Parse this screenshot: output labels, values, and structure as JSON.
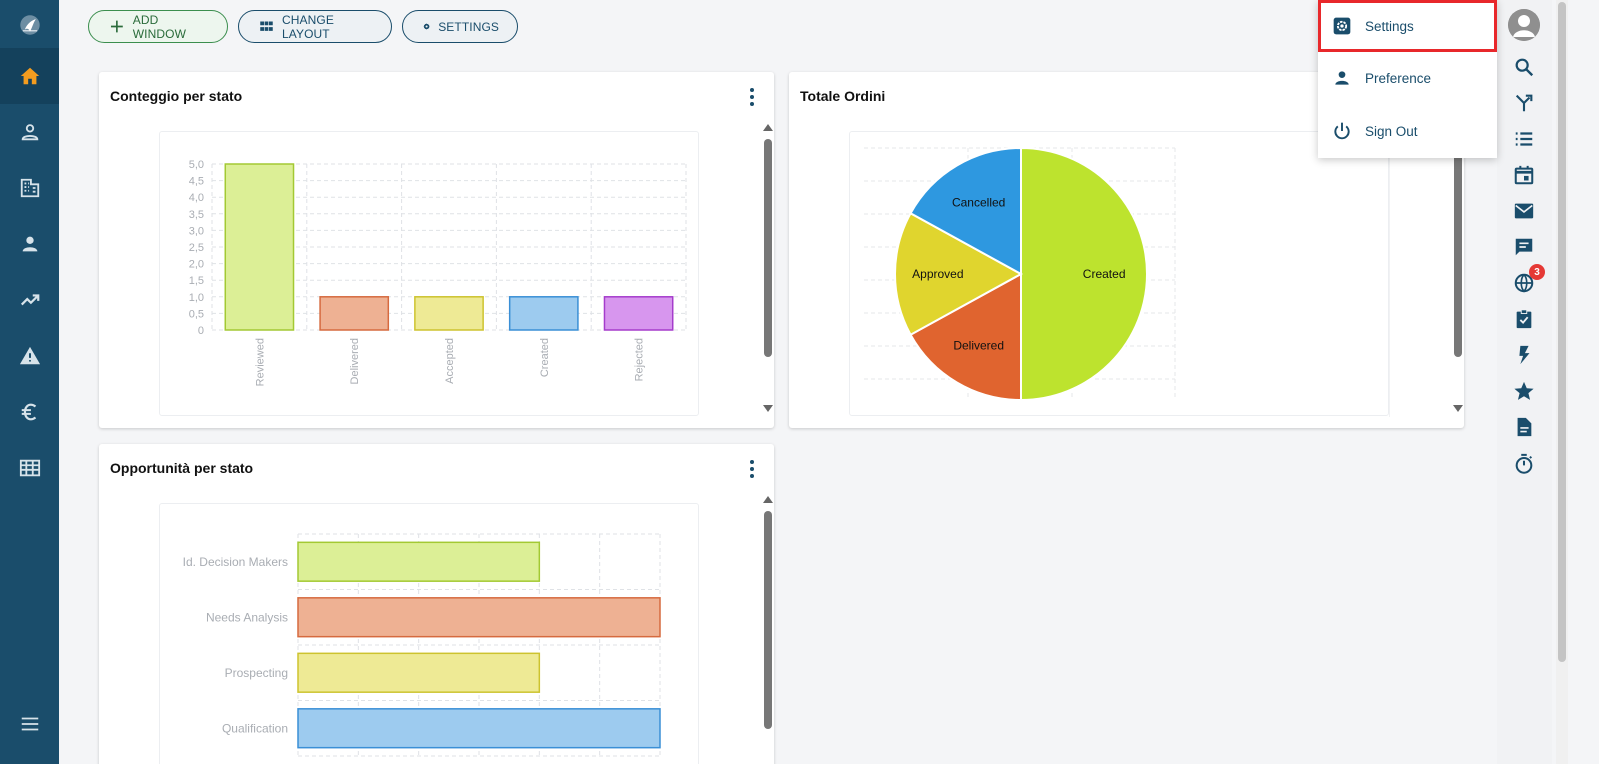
{
  "sidebar": {
    "logo_icon": "app-logo-icon",
    "items": [
      {
        "name": "home",
        "icon": "home-icon",
        "active": true
      },
      {
        "name": "contacts",
        "icon": "person-outline-icon"
      },
      {
        "name": "companies",
        "icon": "building-icon"
      },
      {
        "name": "users",
        "icon": "person-icon"
      },
      {
        "name": "trends",
        "icon": "trending-up-icon"
      },
      {
        "name": "alerts",
        "icon": "warning-icon"
      },
      {
        "name": "finance",
        "icon": "euro-icon"
      },
      {
        "name": "tables",
        "icon": "table-icon"
      }
    ],
    "menu_icon": "hamburger-menu-icon"
  },
  "toolbar": {
    "add_window": "ADD WINDOW",
    "change_layout": "CHANGE LAYOUT",
    "settings": "SETTINGS"
  },
  "widgets": {
    "status_count": {
      "title": "Conteggio per stato",
      "y_ticks": [
        "0",
        "0,5",
        "1,0",
        "1,5",
        "2,0",
        "2,5",
        "3,0",
        "3,5",
        "4,0",
        "4,5",
        "5,0"
      ]
    },
    "total_orders": {
      "title": "Totale Ordini"
    },
    "opportunities": {
      "title": "Opportunità per stato"
    }
  },
  "chart_data": [
    {
      "type": "bar",
      "categories": [
        "Reviewed",
        "Delivered",
        "Accepted",
        "Created",
        "Rejected"
      ],
      "values": [
        5,
        1,
        1,
        1,
        1
      ],
      "ylim": [
        0,
        5
      ],
      "colors": [
        "#dcef96",
        "#eeb193",
        "#eeea95",
        "#9dcbef",
        "#d796ee"
      ],
      "border_colors": [
        "#a3c933",
        "#d66a3f",
        "#cdc32f",
        "#3a8fd6",
        "#a53ccc"
      ],
      "grid": true
    },
    {
      "type": "pie",
      "labels": [
        "Created",
        "Delivered",
        "Approved",
        "Cancelled"
      ],
      "values": [
        50,
        17,
        16,
        17
      ],
      "colors": [
        "#bde32e",
        "#e0642f",
        "#e0d52e",
        "#2e98e0"
      ]
    },
    {
      "type": "bar",
      "orientation": "horizontal",
      "categories": [
        "Id. Decision Makers",
        "Needs Analysis",
        "Prospecting",
        "Qualification"
      ],
      "values": [
        2,
        3,
        2,
        3
      ],
      "xlim": [
        0,
        3
      ],
      "colors": [
        "#dcef96",
        "#eeb193",
        "#eeea95",
        "#9dcbef"
      ],
      "border_colors": [
        "#a3c933",
        "#d66a3f",
        "#cdc32f",
        "#3a8fd6"
      ],
      "grid": true
    }
  ],
  "user_menu": {
    "items": [
      {
        "label": "Settings",
        "icon": "settings-icon",
        "highlighted": true
      },
      {
        "label": "Preference",
        "icon": "person-icon"
      },
      {
        "label": "Sign Out",
        "icon": "power-icon"
      }
    ]
  },
  "right_rail": {
    "items": [
      {
        "icon": "search-icon"
      },
      {
        "icon": "merge-icon"
      },
      {
        "icon": "list-icon"
      },
      {
        "icon": "calendar-icon"
      },
      {
        "icon": "mail-icon"
      },
      {
        "icon": "chat-icon"
      },
      {
        "icon": "globe-icon",
        "badge": "3"
      },
      {
        "icon": "clipboard-check-icon"
      },
      {
        "icon": "flash-icon"
      },
      {
        "icon": "star-icon"
      },
      {
        "icon": "document-icon"
      },
      {
        "icon": "timer-icon"
      }
    ]
  }
}
